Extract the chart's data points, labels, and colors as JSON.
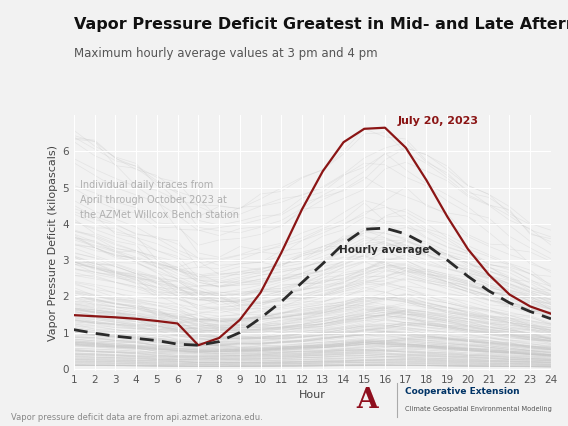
{
  "title": "Vapor Pressure Deficit Greatest in Mid- and Late Afternoon",
  "subtitle": "Maximum hourly average values at 3 pm and 4 pm",
  "xlabel": "Hour",
  "ylabel": "Vapor Pressure Deficit (kilopascals)",
  "annotation_text": "Individual daily traces from\nApril through October 2023 at\nthe AZMet Willcox Bench station",
  "highlight_label": "July 20, 2023",
  "hourly_avg_label": "Hourly average",
  "source_text": "Vapor pressure deficit data are from api.azmet.arizona.edu.",
  "xlim": [
    1,
    24
  ],
  "ylim": [
    -0.05,
    7.0
  ],
  "yticks": [
    0,
    1,
    2,
    3,
    4,
    5,
    6
  ],
  "xticks": [
    1,
    2,
    3,
    4,
    5,
    6,
    7,
    8,
    9,
    10,
    11,
    12,
    13,
    14,
    15,
    16,
    17,
    18,
    19,
    20,
    21,
    22,
    23,
    24
  ],
  "bg_color": "#f2f2f2",
  "plot_bg_color": "#f2f2f2",
  "grid_color": "#ffffff",
  "trace_color": "#c8c8c8",
  "avg_color": "#2b2b2b",
  "highlight_color": "#8b1515",
  "annotation_color": "#b0b0b0",
  "title_fontsize": 11.5,
  "subtitle_fontsize": 8.5,
  "label_fontsize": 8,
  "tick_fontsize": 7.5,
  "highlight_label_color": "#8b1515",
  "hours": [
    1,
    2,
    3,
    4,
    5,
    6,
    7,
    8,
    9,
    10,
    11,
    12,
    13,
    14,
    15,
    16,
    17,
    18,
    19,
    20,
    21,
    22,
    23,
    24
  ],
  "hourly_avg": [
    1.08,
    0.98,
    0.9,
    0.84,
    0.78,
    0.68,
    0.65,
    0.75,
    1.0,
    1.4,
    1.85,
    2.38,
    2.9,
    3.45,
    3.85,
    3.88,
    3.72,
    3.42,
    3.0,
    2.55,
    2.15,
    1.82,
    1.58,
    1.38
  ],
  "july20_trace": [
    1.48,
    1.45,
    1.42,
    1.38,
    1.32,
    1.25,
    0.65,
    0.85,
    1.35,
    2.1,
    3.2,
    4.4,
    5.45,
    6.25,
    6.62,
    6.65,
    6.1,
    5.2,
    4.2,
    3.3,
    2.6,
    2.05,
    1.72,
    1.52
  ]
}
